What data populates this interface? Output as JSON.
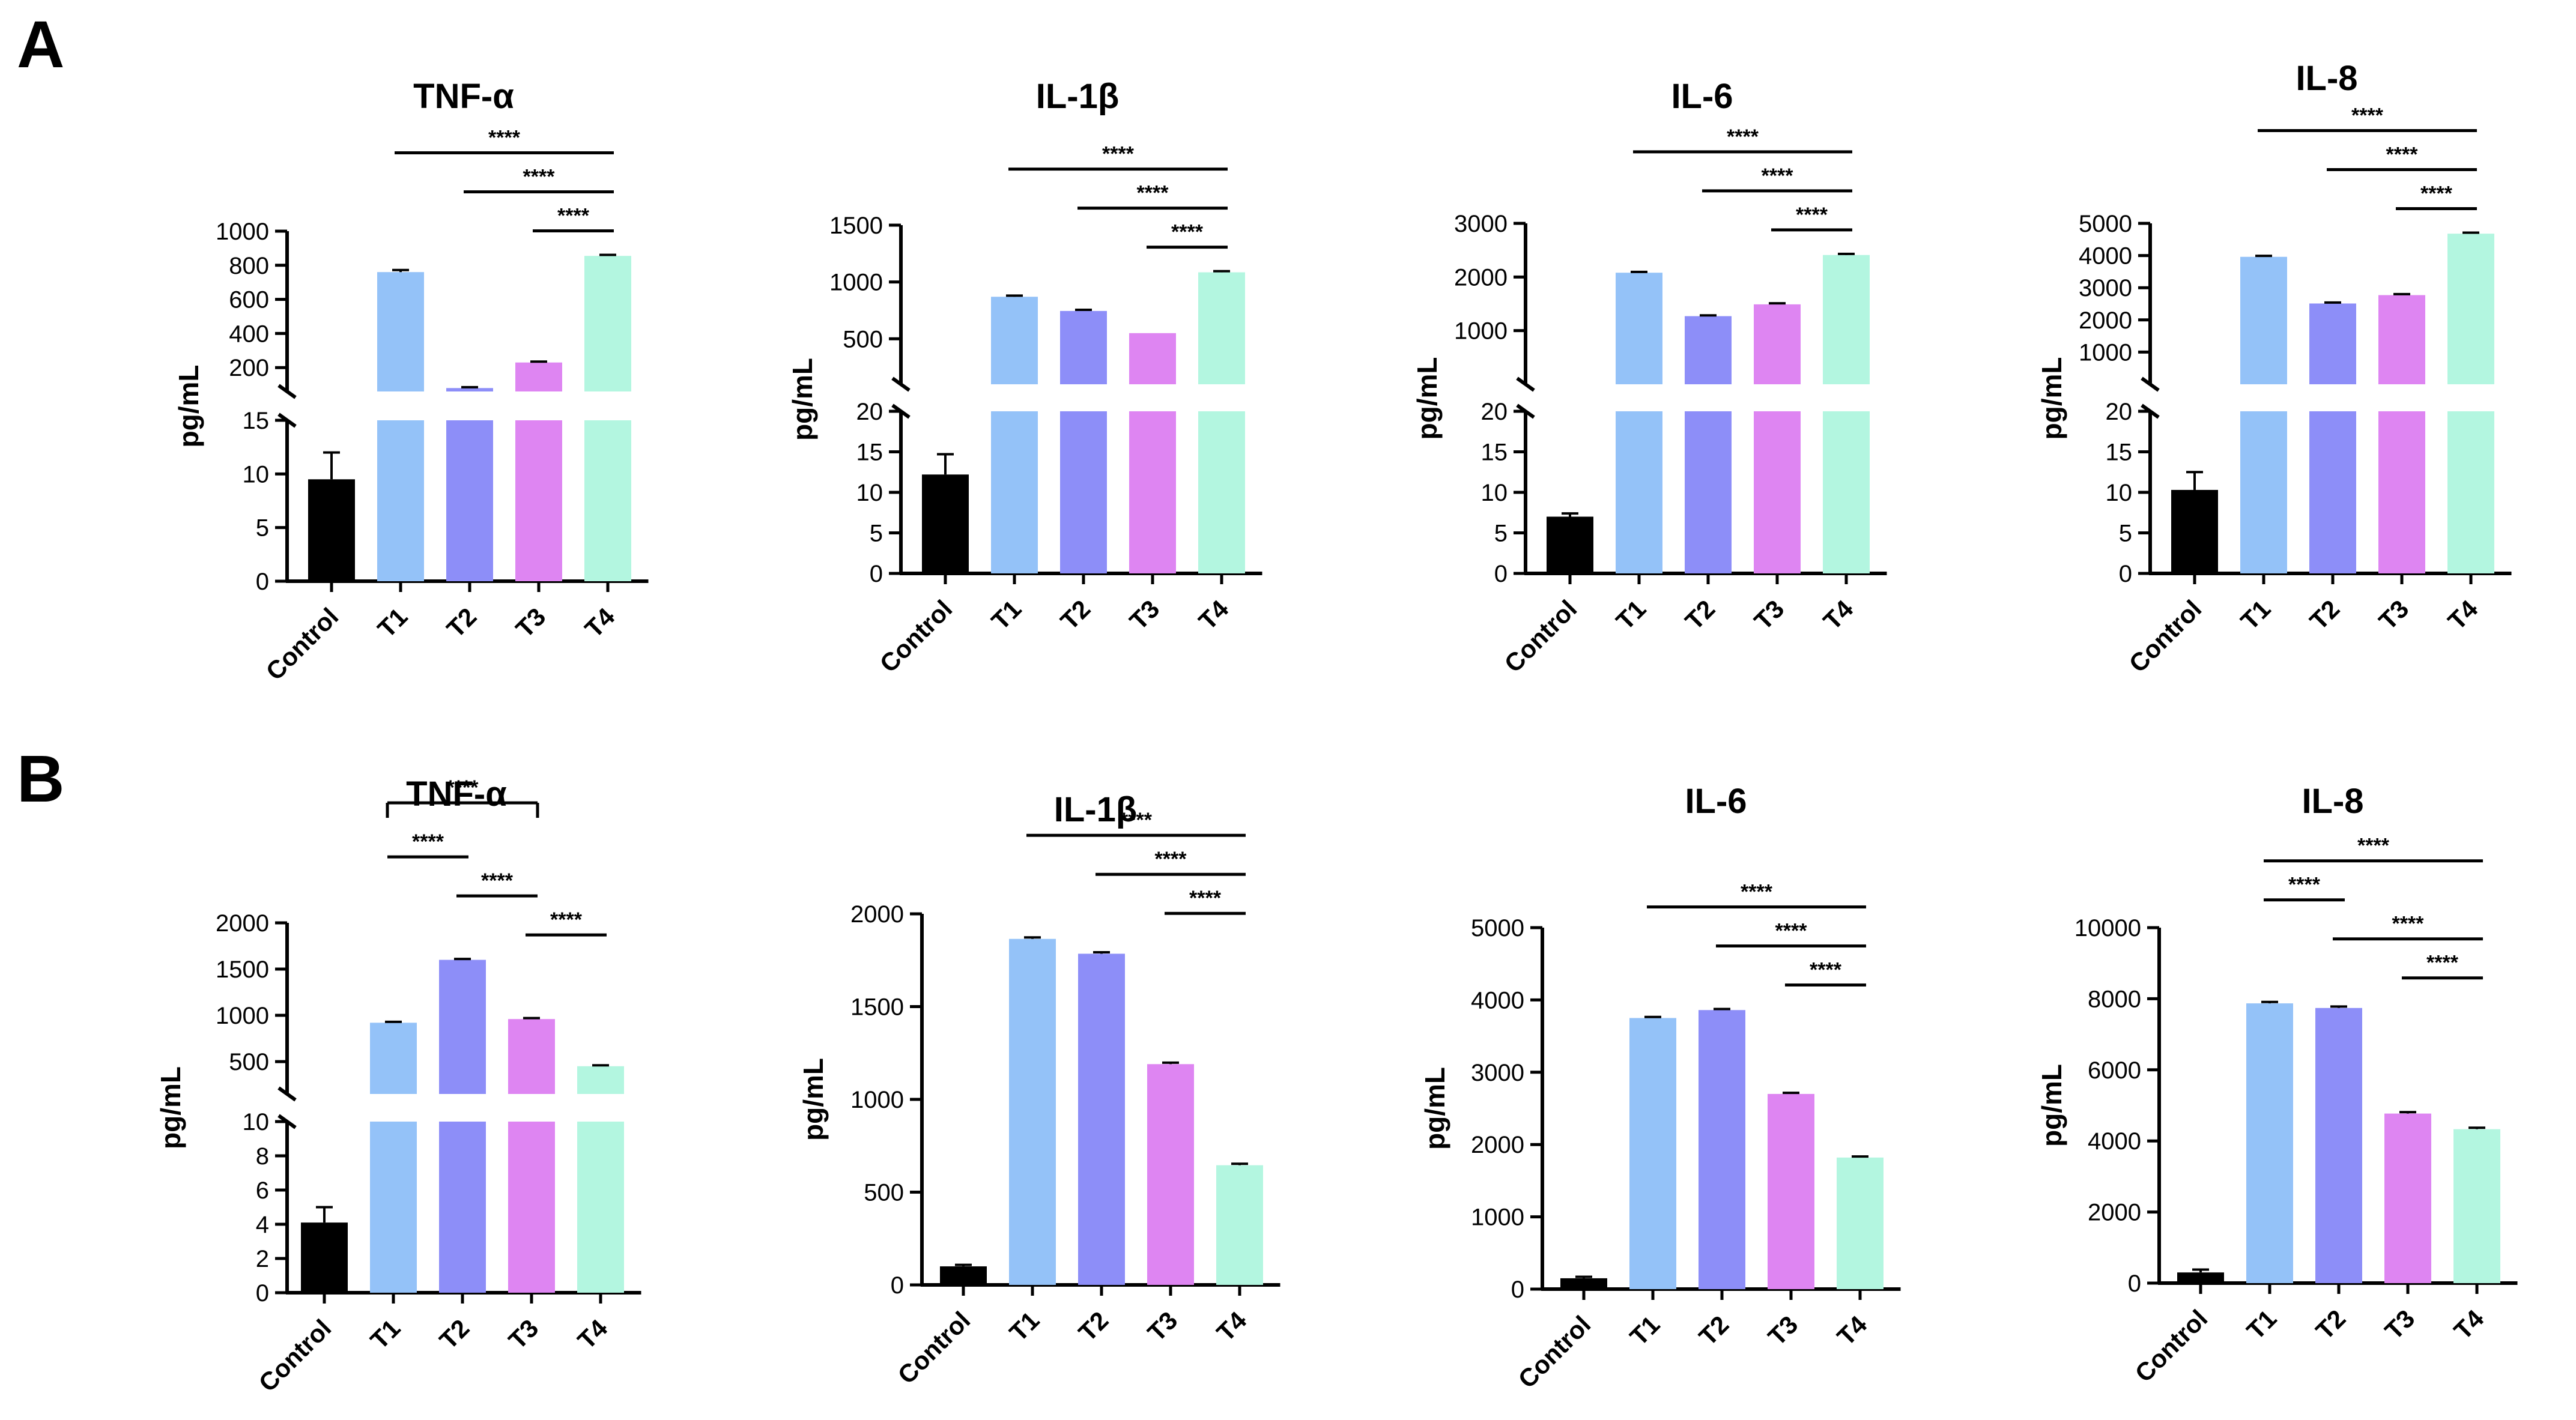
{
  "panel_labels": [
    "A",
    "B"
  ],
  "colors": {
    "Control": "#000000",
    "T1": "#94c2f8",
    "T2": "#8d8ef8",
    "T3": "#de85f2",
    "T4": "#b3f6e0"
  },
  "chart_data": [
    {
      "panel": "A",
      "type": "bar",
      "title": "TNF-α",
      "ylabel": "pg/mL",
      "categories": [
        "Control",
        "T1",
        "T2",
        "T3",
        "T4"
      ],
      "values": [
        9.5,
        760,
        80,
        230,
        855
      ],
      "errors": [
        2.5,
        12,
        5,
        5,
        6
      ],
      "broken_axis": true,
      "lower_ylim": [
        0,
        15
      ],
      "lower_ticks": [
        "0",
        "5",
        "10",
        "15"
      ],
      "upper_ylim": [
        60,
        1000
      ],
      "upper_ticks": [
        "200",
        "400",
        "600",
        "800",
        "1000"
      ],
      "significance": [
        {
          "from": "T1",
          "to": "T4",
          "label": "****"
        },
        {
          "from": "T2",
          "to": "T4",
          "label": "****"
        },
        {
          "from": "T3",
          "to": "T4",
          "label": "****"
        }
      ]
    },
    {
      "panel": "A",
      "type": "bar",
      "title": "IL-1β",
      "ylabel": "pg/mL",
      "categories": [
        "Control",
        "T1",
        "T2",
        "T3",
        "T4"
      ],
      "values": [
        12.2,
        870,
        745,
        550,
        1085
      ],
      "errors": [
        2.5,
        10,
        10,
        0,
        10
      ],
      "broken_axis": true,
      "lower_ylim": [
        0,
        20
      ],
      "lower_ticks": [
        "0",
        "5",
        "10",
        "15",
        "20"
      ],
      "upper_ylim": [
        100,
        1500
      ],
      "upper_ticks": [
        "500",
        "1000",
        "1500"
      ],
      "significance": [
        {
          "from": "T1",
          "to": "T4",
          "label": "****"
        },
        {
          "from": "T2",
          "to": "T4",
          "label": "****"
        },
        {
          "from": "T3",
          "to": "T4",
          "label": "****"
        }
      ]
    },
    {
      "panel": "A",
      "type": "bar",
      "title": "IL-6",
      "ylabel": "pg/mL",
      "categories": [
        "Control",
        "T1",
        "T2",
        "T3",
        "T4"
      ],
      "values": [
        7,
        2080,
        1270,
        1490,
        2410
      ],
      "errors": [
        0.4,
        15,
        15,
        20,
        20
      ],
      "broken_axis": true,
      "lower_ylim": [
        0,
        20
      ],
      "lower_ticks": [
        "0",
        "5",
        "10",
        "15",
        "20"
      ],
      "upper_ylim": [
        0,
        3000
      ],
      "upper_ticks": [
        "1000",
        "2000",
        "3000"
      ],
      "significance": [
        {
          "from": "T1",
          "to": "T4",
          "label": "****"
        },
        {
          "from": "T2",
          "to": "T4",
          "label": "****"
        },
        {
          "from": "T3",
          "to": "T4",
          "label": "****"
        }
      ]
    },
    {
      "panel": "A",
      "type": "bar",
      "title": "IL-8",
      "ylabel": "pg/mL",
      "categories": [
        "Control",
        "T1",
        "T2",
        "T3",
        "T4"
      ],
      "values": [
        10.3,
        3960,
        2510,
        2770,
        4680
      ],
      "errors": [
        2.2,
        30,
        30,
        30,
        30
      ],
      "broken_axis": true,
      "lower_ylim": [
        0,
        20
      ],
      "lower_ticks": [
        "0",
        "5",
        "10",
        "15",
        "20"
      ],
      "upper_ylim": [
        0,
        5000
      ],
      "upper_ticks": [
        "1000",
        "2000",
        "3000",
        "4000",
        "5000"
      ],
      "significance": [
        {
          "from": "T1",
          "to": "T4",
          "label": "****"
        },
        {
          "from": "T2",
          "to": "T4",
          "label": "****"
        },
        {
          "from": "T3",
          "to": "T4",
          "label": "****"
        }
      ]
    },
    {
      "panel": "B",
      "type": "bar",
      "title": "TNF-α",
      "ylabel": "pg/mL",
      "categories": [
        "Control",
        "T1",
        "T2",
        "T3",
        "T4"
      ],
      "values": [
        4.1,
        920,
        1600,
        960,
        450
      ],
      "errors": [
        0.9,
        10,
        10,
        10,
        10
      ],
      "broken_axis": true,
      "lower_ylim": [
        0,
        10
      ],
      "lower_ticks": [
        "0",
        "2",
        "4",
        "6",
        "8",
        "10"
      ],
      "upper_ylim": [
        150,
        2000
      ],
      "upper_ticks": [
        "500",
        "1000",
        "1500",
        "2000"
      ],
      "significance": [
        {
          "from": "T1",
          "to": "T3",
          "label": "****",
          "style": "bracket"
        },
        {
          "from": "T1",
          "to": "T2",
          "label": "****"
        },
        {
          "from": "T2",
          "to": "T3",
          "label": "****"
        },
        {
          "from": "T3",
          "to": "T4",
          "label": "****"
        }
      ]
    },
    {
      "panel": "B",
      "type": "bar",
      "title": "IL-1β",
      "ylabel": "pg/mL",
      "categories": [
        "Control",
        "T1",
        "T2",
        "T3",
        "T4"
      ],
      "values": [
        100,
        1865,
        1785,
        1190,
        645
      ],
      "errors": [
        8,
        8,
        8,
        8,
        8
      ],
      "broken_axis": false,
      "ylim": [
        0,
        2000
      ],
      "ticks": [
        "0",
        "500",
        "1000",
        "1500",
        "2000"
      ],
      "significance": [
        {
          "from": "T1",
          "to": "T4",
          "label": "****"
        },
        {
          "from": "T2",
          "to": "T4",
          "label": "****"
        },
        {
          "from": "T3",
          "to": "T4",
          "label": "****"
        }
      ]
    },
    {
      "panel": "B",
      "type": "bar",
      "title": "IL-6",
      "ylabel": "pg/mL",
      "categories": [
        "Control",
        "T1",
        "T2",
        "T3",
        "T4"
      ],
      "values": [
        150,
        3750,
        3860,
        2700,
        1820
      ],
      "errors": [
        20,
        15,
        15,
        15,
        15
      ],
      "broken_axis": false,
      "ylim": [
        0,
        5000
      ],
      "ticks": [
        "0",
        "1000",
        "2000",
        "3000",
        "4000",
        "5000"
      ],
      "significance": [
        {
          "from": "T1",
          "to": "T4",
          "label": "****"
        },
        {
          "from": "T2",
          "to": "T4",
          "label": "****"
        },
        {
          "from": "T3",
          "to": "T4",
          "label": "****"
        }
      ]
    },
    {
      "panel": "B",
      "type": "bar",
      "title": "IL-8",
      "ylabel": "pg/mL",
      "categories": [
        "Control",
        "T1",
        "T2",
        "T3",
        "T4"
      ],
      "values": [
        300,
        7870,
        7740,
        4770,
        4330
      ],
      "errors": [
        80,
        40,
        40,
        40,
        40
      ],
      "broken_axis": false,
      "ylim": [
        0,
        10000
      ],
      "ticks": [
        "0",
        "2000",
        "4000",
        "6000",
        "8000",
        "10000"
      ],
      "significance": [
        {
          "from": "T1",
          "to": "T4",
          "label": "****"
        },
        {
          "from": "T1",
          "to": "T2",
          "label": "****"
        },
        {
          "from": "T2",
          "to": "T4",
          "label": "****"
        },
        {
          "from": "T3",
          "to": "T4",
          "label": "****"
        }
      ]
    }
  ]
}
